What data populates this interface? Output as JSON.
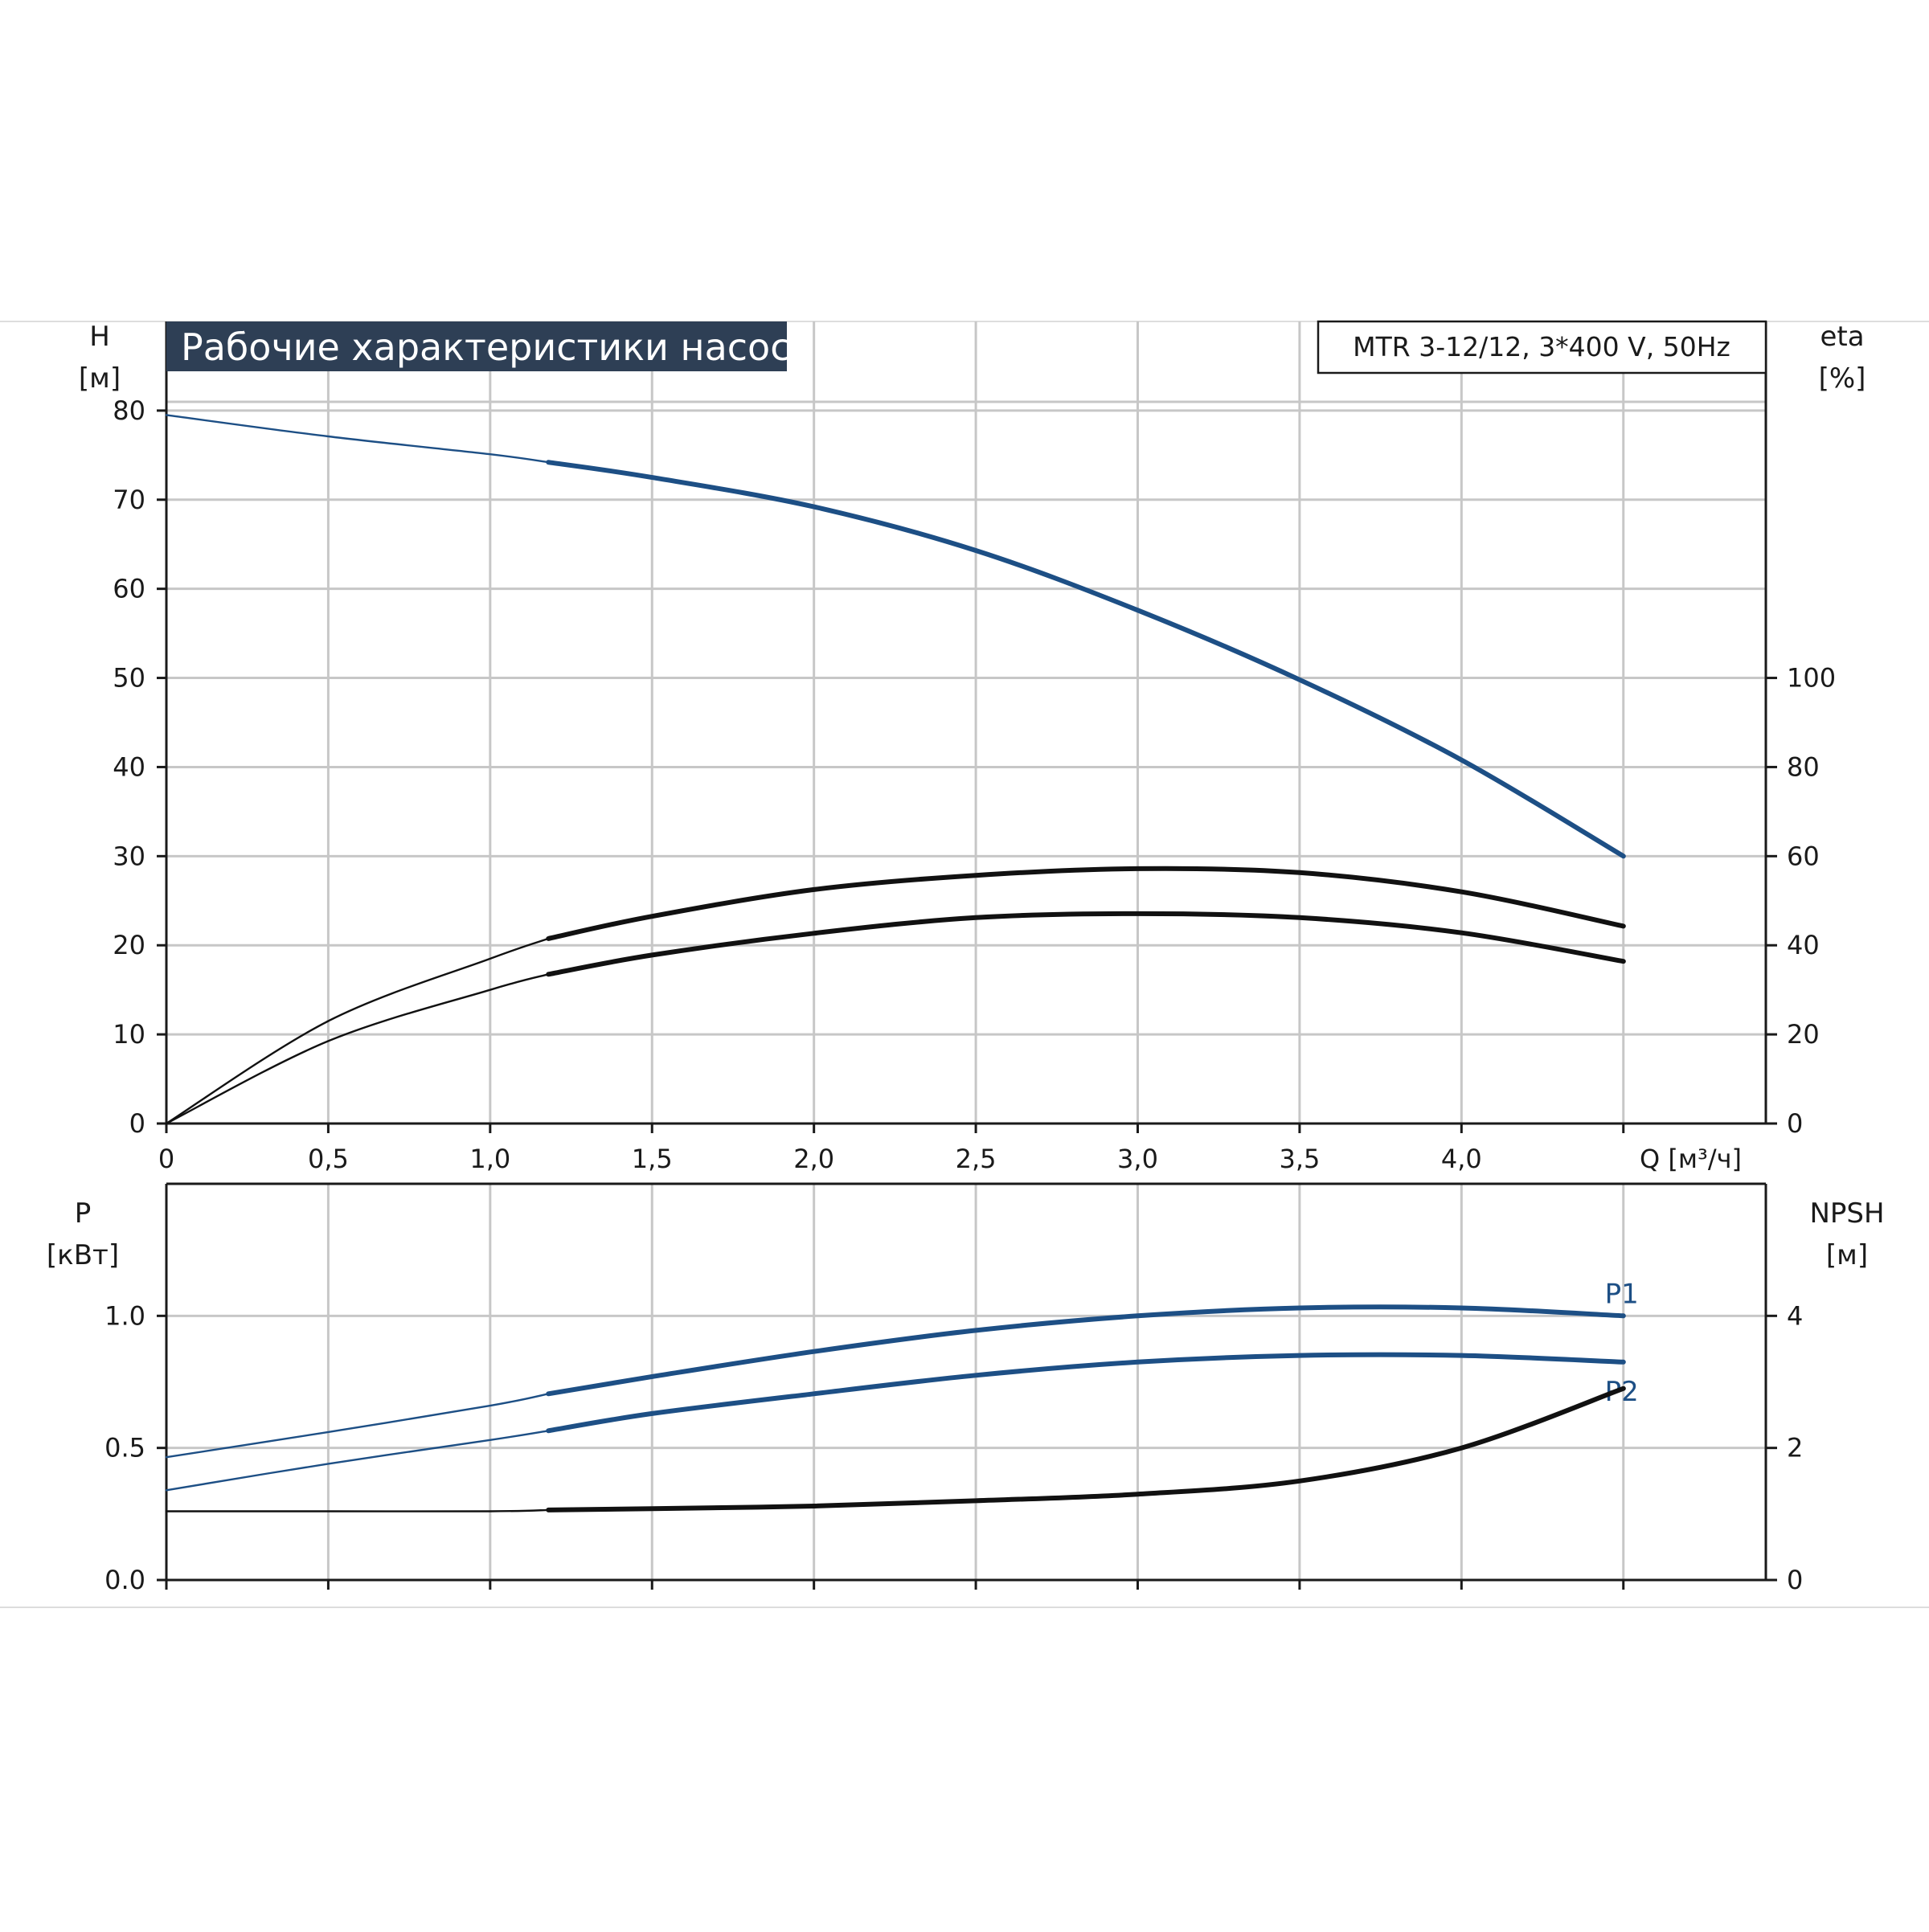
{
  "chart_data": [
    {
      "type": "line",
      "title": "Рабочие характеристики насоса",
      "model_label": "MTR 3-12/12, 3*400 V, 50Hz",
      "left_axis": {
        "label": "H",
        "unit": "[м]",
        "range": [
          0,
          90
        ],
        "ticks": [
          0,
          10,
          20,
          30,
          40,
          50,
          60,
          70,
          80
        ]
      },
      "right_axis": {
        "label": "eta",
        "unit": "[%]",
        "range": [
          0,
          180
        ],
        "ticks": [
          0,
          20,
          40,
          60,
          80,
          100
        ]
      },
      "x_axis": {
        "label": "Q [м³/ч]",
        "range": [
          0,
          4.94
        ],
        "ticks": [
          0,
          0.5,
          1.0,
          1.5,
          2.0,
          2.5,
          3.0,
          3.5,
          4.0,
          4.5
        ],
        "tick_labels": [
          "0",
          "0,5",
          "1,0",
          "1,5",
          "2,0",
          "2,5",
          "3,0",
          "3,5",
          "4,0"
        ]
      },
      "grid": true,
      "colors": {
        "head": "#1d4f85",
        "eta": "#111111",
        "grid": "#c7c7c7",
        "title_bg": "#2e3f55"
      },
      "series": [
        {
          "axis": "left",
          "color": "#1d4f85",
          "points": [
            [
              0,
              79.5
            ],
            [
              0.5,
              77.1
            ],
            [
              1.0,
              75.1
            ],
            [
              1.18,
              74.2
            ],
            [
              1.5,
              72.5
            ],
            [
              2.0,
              69.2
            ],
            [
              2.5,
              64.3
            ],
            [
              3.0,
              57.6
            ],
            [
              3.5,
              49.8
            ],
            [
              4.0,
              40.8
            ],
            [
              4.5,
              30.0
            ]
          ]
        },
        {
          "axis": "right",
          "color": "#111111",
          "points": [
            [
              0,
              0
            ],
            [
              0.5,
              23
            ],
            [
              1.0,
              37
            ],
            [
              1.18,
              41.5
            ],
            [
              1.5,
              46.5
            ],
            [
              2.0,
              52.5
            ],
            [
              2.5,
              55.7
            ],
            [
              3.0,
              57.2
            ],
            [
              3.5,
              56.3
            ],
            [
              4.0,
              52.0
            ],
            [
              4.5,
              44.3
            ]
          ]
        },
        {
          "axis": "right",
          "color": "#111111",
          "points": [
            [
              0,
              0
            ],
            [
              0.5,
              18.5
            ],
            [
              1.0,
              30
            ],
            [
              1.18,
              33.5
            ],
            [
              1.5,
              37.8
            ],
            [
              2.0,
              42.7
            ],
            [
              2.5,
              46.2
            ],
            [
              3.0,
              47.1
            ],
            [
              3.5,
              46.2
            ],
            [
              4.0,
              42.8
            ],
            [
              4.5,
              36.4
            ]
          ]
        }
      ]
    },
    {
      "type": "line",
      "left_axis": {
        "label": "P",
        "unit": "[кВт]",
        "range": [
          0,
          1.5
        ],
        "ticks": [
          0.0,
          0.5,
          1.0
        ],
        "tick_labels": [
          "0.0",
          "0.5",
          "1.0"
        ]
      },
      "right_axis": {
        "label": "NPSH",
        "unit": "[м]",
        "range": [
          0,
          6
        ],
        "ticks": [
          0,
          2,
          4
        ]
      },
      "x_axis": {
        "range": [
          0,
          4.94
        ],
        "ticks": [
          0,
          0.5,
          1.0,
          1.5,
          2.0,
          2.5,
          3.0,
          3.5,
          4.0,
          4.5
        ]
      },
      "grid": true,
      "series": [
        {
          "name": "P1",
          "axis": "left",
          "color": "#1d4f85",
          "points": [
            [
              0,
              0.465
            ],
            [
              0.5,
              0.56
            ],
            [
              1.0,
              0.66
            ],
            [
              1.18,
              0.705
            ],
            [
              1.5,
              0.77
            ],
            [
              2.0,
              0.865
            ],
            [
              2.5,
              0.945
            ],
            [
              3.0,
              1.0
            ],
            [
              3.5,
              1.03
            ],
            [
              4.0,
              1.03
            ],
            [
              4.5,
              1.0
            ]
          ]
        },
        {
          "name": "P2",
          "axis": "left",
          "color": "#1d4f85",
          "points": [
            [
              0,
              0.34
            ],
            [
              0.5,
              0.44
            ],
            [
              1.0,
              0.53
            ],
            [
              1.18,
              0.565
            ],
            [
              1.5,
              0.63
            ],
            [
              2.0,
              0.705
            ],
            [
              2.5,
              0.775
            ],
            [
              3.0,
              0.825
            ],
            [
              3.5,
              0.85
            ],
            [
              4.0,
              0.85
            ],
            [
              4.5,
              0.825
            ]
          ]
        },
        {
          "axis": "right",
          "color": "#111111",
          "points": [
            [
              0,
              1.04
            ],
            [
              0.5,
              1.04
            ],
            [
              1.0,
              1.04
            ],
            [
              1.18,
              1.06
            ],
            [
              1.5,
              1.08
            ],
            [
              2.0,
              1.12
            ],
            [
              2.5,
              1.2
            ],
            [
              3.0,
              1.3
            ],
            [
              3.5,
              1.5
            ],
            [
              4.0,
              2.0
            ],
            [
              4.5,
              2.9
            ]
          ]
        }
      ]
    }
  ]
}
